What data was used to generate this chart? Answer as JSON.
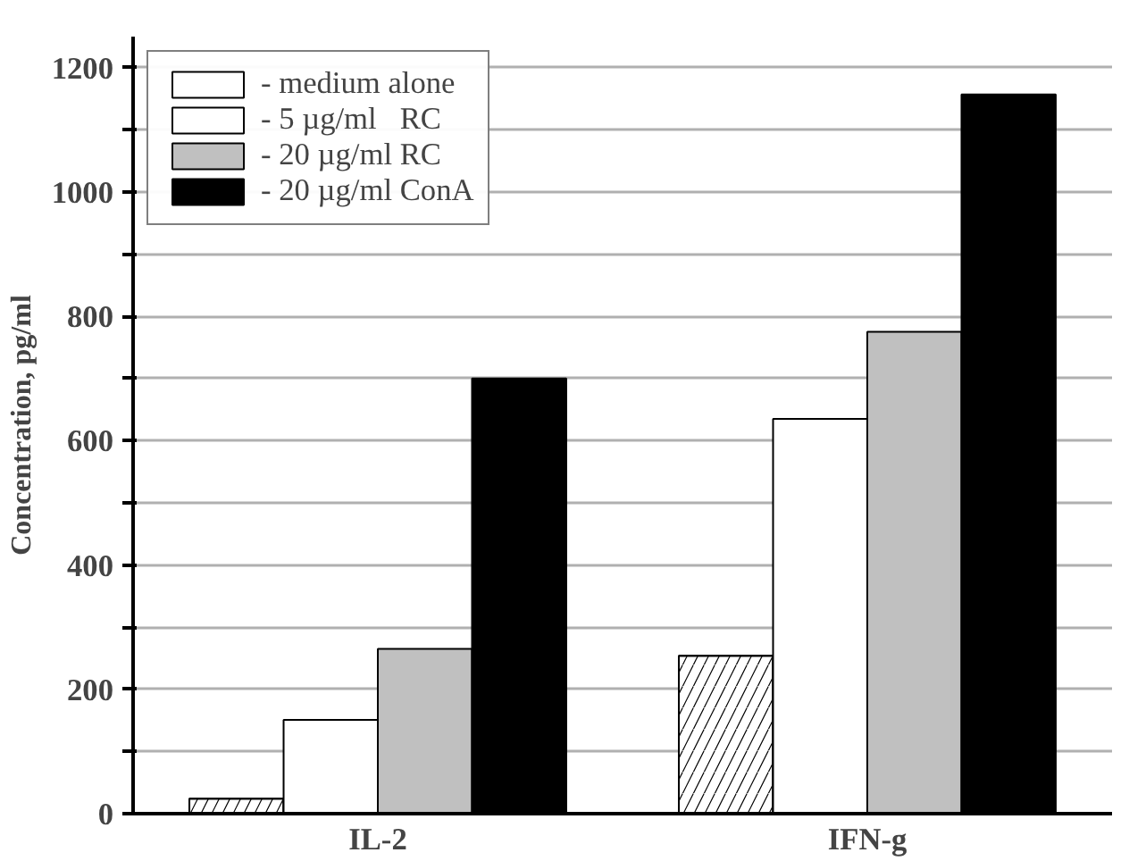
{
  "chart_data": {
    "type": "bar",
    "ylabel": "Concentration, pg/ml",
    "categories": [
      "IL-2",
      "IFN-g"
    ],
    "series": [
      {
        "name": "- medium alone",
        "color": "#ffffff",
        "values": [
          24,
          254
        ]
      },
      {
        "name": "- 5 µg/ml   RC",
        "color": "#ffffff",
        "values": [
          151,
          635
        ]
      },
      {
        "name": "- 20 µg/ml RC",
        "color": "#c0c0c0",
        "values": [
          265,
          775
        ]
      },
      {
        "name": "- 20 µg/ml ConA",
        "color": "#000000",
        "values": [
          700,
          1157
        ]
      }
    ],
    "ylim": [
      0,
      1250
    ],
    "yticks": [
      0,
      {
        "value": 100,
        "label": null
      },
      200,
      {
        "value": 300,
        "label": null
      },
      400,
      {
        "value": 500,
        "label": null
      },
      600,
      {
        "value": 700,
        "label": null
      },
      800,
      {
        "value": 900,
        "label": null
      },
      1000,
      {
        "value": 1100,
        "label": null
      },
      1200
    ],
    "grid": "y",
    "legend": "top left"
  }
}
